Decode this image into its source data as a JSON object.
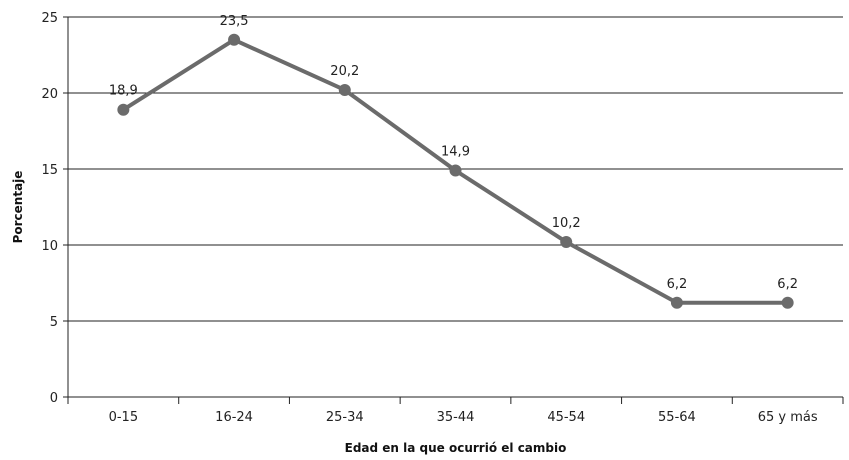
{
  "chart_data": {
    "type": "line",
    "categories": [
      "0-15",
      "16-24",
      "25-34",
      "35-44",
      "45-54",
      "55-64",
      "65 y más"
    ],
    "series": [
      {
        "values": [
          18.9,
          23.5,
          20.2,
          14.9,
          10.2,
          6.2,
          6.2
        ]
      }
    ],
    "data_labels": [
      "18,9",
      "23,5",
      "20,2",
      "14,9",
      "10,2",
      "6,2",
      "6,2"
    ],
    "y_ticks": [
      0,
      5,
      10,
      15,
      20,
      25
    ],
    "y_tick_labels": [
      "0",
      "5",
      "10",
      "15",
      "20",
      "25"
    ],
    "xlabel": "Edad en la que ocurrió el cambio",
    "ylabel": "Porcentaje",
    "ylim": [
      0,
      25
    ],
    "grid": true,
    "line_color": "#6b6b6b"
  }
}
